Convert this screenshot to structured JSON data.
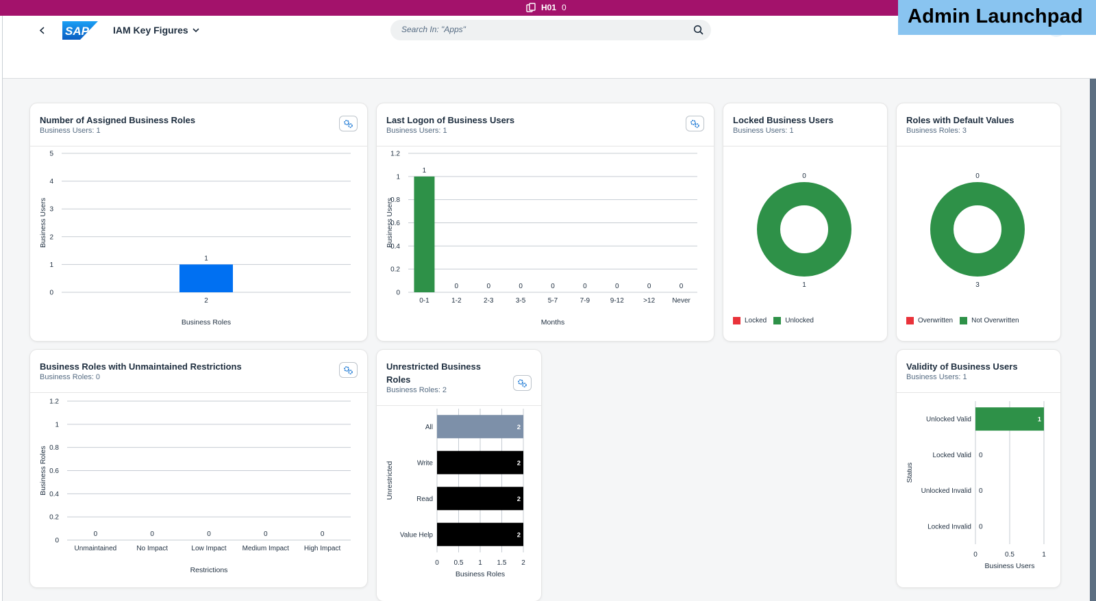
{
  "system_bar": {
    "system_id": "H01",
    "count": "0"
  },
  "badge": "Admin Launchpad",
  "shell": {
    "logo_text": "SAP",
    "app_title": "IAM Key Figures",
    "search_placeholder": "Search In: \"Apps\""
  },
  "colors": {
    "green": "#2e9148",
    "blue": "#0070f2",
    "red": "#e9323a",
    "slate": "#7d90a9",
    "black": "#000000",
    "shell_bar": "#a3126b"
  },
  "cards": {
    "assigned_roles": {
      "title": "Number of Assigned Business Roles",
      "subtitle": "Business Users: 1"
    },
    "last_logon": {
      "title": "Last Logon of Business Users",
      "subtitle": "Business Users: 1"
    },
    "locked_users": {
      "title": "Locked Business Users",
      "subtitle": "Business Users: 1",
      "legend": [
        "Locked",
        "Unlocked"
      ]
    },
    "default_values": {
      "title": "Roles with Default Values",
      "subtitle": "Business Roles: 3",
      "legend": [
        "Overwritten",
        "Not Overwritten"
      ]
    },
    "unmaintained": {
      "title": "Business Roles with Unmaintained Restrictions",
      "subtitle": "Business Roles: 0"
    },
    "unrestricted": {
      "title": "Unrestricted Business Roles",
      "subtitle": "Business Roles: 2"
    },
    "validity": {
      "title": "Validity of Business Users",
      "subtitle": "Business Users: 1"
    }
  },
  "chart_data": [
    {
      "id": "assigned_roles",
      "type": "bar",
      "categories": [
        "2"
      ],
      "values": [
        1
      ],
      "xlabel": "Business Roles",
      "ylabel": "Business Users",
      "ylim": [
        0,
        5
      ],
      "yticks": [
        "0",
        "1",
        "2",
        "3",
        "4",
        "5"
      ],
      "grid": true
    },
    {
      "id": "last_logon",
      "type": "bar",
      "categories": [
        "0-1",
        "1-2",
        "2-3",
        "3-5",
        "5-7",
        "7-9",
        "9-12",
        ">12",
        "Never"
      ],
      "values": [
        1,
        0,
        0,
        0,
        0,
        0,
        0,
        0,
        0
      ],
      "xlabel": "Months",
      "ylabel": "Business Users",
      "ylim": [
        0,
        1.2
      ],
      "yticks": [
        "0",
        "0.2",
        "0.4",
        "0.6",
        "0.8",
        "1",
        "1.2"
      ],
      "grid": true
    },
    {
      "id": "locked_users",
      "type": "pie",
      "labels": [
        "Locked",
        "Unlocked"
      ],
      "values": [
        0,
        1
      ]
    },
    {
      "id": "default_values",
      "type": "pie",
      "labels": [
        "Overwritten",
        "Not Overwritten"
      ],
      "values": [
        0,
        3
      ]
    },
    {
      "id": "unmaintained",
      "type": "bar",
      "categories": [
        "Unmaintained",
        "No Impact",
        "Low Impact",
        "Medium Impact",
        "High Impact"
      ],
      "values": [
        0,
        0,
        0,
        0,
        0
      ],
      "xlabel": "Restrictions",
      "ylabel": "Business Roles",
      "ylim": [
        0,
        1.2
      ],
      "yticks": [
        "0",
        "0.2",
        "0.4",
        "0.6",
        "0.8",
        "1",
        "1.2"
      ],
      "grid": true
    },
    {
      "id": "unrestricted",
      "type": "bar",
      "orientation": "horizontal",
      "categories": [
        "All",
        "Write",
        "Read",
        "Value Help"
      ],
      "values": [
        2,
        2,
        2,
        2
      ],
      "xlabel": "Business Roles",
      "ylabel": "Unrestricted",
      "xlim": [
        0,
        2
      ],
      "xticks": [
        "0",
        "0.5",
        "1",
        "1.5",
        "2"
      ],
      "grid": true
    },
    {
      "id": "validity",
      "type": "bar",
      "orientation": "horizontal",
      "categories": [
        "Unlocked Valid",
        "Locked Valid",
        "Unlocked Invalid",
        "Locked Invalid"
      ],
      "values": [
        1,
        0,
        0,
        0
      ],
      "xlabel": "Business Users",
      "ylabel": "Status",
      "xlim": [
        0,
        1
      ],
      "xticks": [
        "0",
        "0.5",
        "1"
      ],
      "grid": true
    }
  ]
}
